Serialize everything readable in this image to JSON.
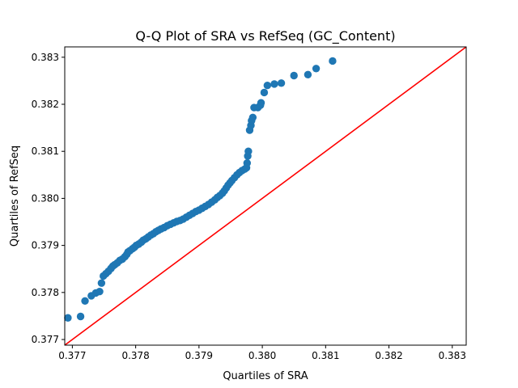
{
  "chart_data": {
    "type": "scatter",
    "title": "Q-Q Plot of SRA vs RefSeq (GC_Content)",
    "xlabel": "Quartiles of SRA",
    "ylabel": "Quartiles of RefSeq",
    "xlim": [
      0.37688,
      0.38322
    ],
    "ylim": [
      0.37688,
      0.38322
    ],
    "xticks": [
      "0.377",
      "0.378",
      "0.379",
      "0.380",
      "0.381",
      "0.382",
      "0.383"
    ],
    "yticks": [
      "0.377",
      "0.378",
      "0.379",
      "0.380",
      "0.381",
      "0.382",
      "0.383"
    ],
    "grid": false,
    "point_color": "#1f77b4",
    "reference_line": {
      "type": "y=x",
      "color": "#ff0000"
    },
    "series": [
      {
        "points": [
          [
            0.37693,
            0.37746
          ],
          [
            0.37713,
            0.37749
          ],
          [
            0.3772,
            0.37782
          ],
          [
            0.3773,
            0.37793
          ],
          [
            0.37737,
            0.37799
          ],
          [
            0.37743,
            0.37802
          ],
          [
            0.37746,
            0.3782
          ],
          [
            0.37749,
            0.37835
          ],
          [
            0.37753,
            0.3784
          ],
          [
            0.37757,
            0.37845
          ],
          [
            0.37761,
            0.37851
          ],
          [
            0.37764,
            0.37856
          ],
          [
            0.37767,
            0.37859
          ],
          [
            0.37771,
            0.37863
          ],
          [
            0.37775,
            0.37868
          ],
          [
            0.37779,
            0.37871
          ],
          [
            0.37783,
            0.37876
          ],
          [
            0.37786,
            0.37881
          ],
          [
            0.37788,
            0.37886
          ],
          [
            0.37791,
            0.37889
          ],
          [
            0.37795,
            0.37893
          ],
          [
            0.37798,
            0.37896
          ],
          [
            0.37801,
            0.379
          ],
          [
            0.37805,
            0.37903
          ],
          [
            0.37809,
            0.37907
          ],
          [
            0.37812,
            0.37911
          ],
          [
            0.37816,
            0.37914
          ],
          [
            0.3782,
            0.37918
          ],
          [
            0.37824,
            0.37922
          ],
          [
            0.37828,
            0.37925
          ],
          [
            0.37832,
            0.37929
          ],
          [
            0.37836,
            0.37932
          ],
          [
            0.3784,
            0.37935
          ],
          [
            0.37845,
            0.37938
          ],
          [
            0.3785,
            0.37942
          ],
          [
            0.37855,
            0.37945
          ],
          [
            0.3786,
            0.37948
          ],
          [
            0.37865,
            0.37951
          ],
          [
            0.3787,
            0.37953
          ],
          [
            0.37875,
            0.37956
          ],
          [
            0.3788,
            0.3796
          ],
          [
            0.37885,
            0.37964
          ],
          [
            0.3789,
            0.37968
          ],
          [
            0.37895,
            0.37972
          ],
          [
            0.379,
            0.37975
          ],
          [
            0.37905,
            0.37979
          ],
          [
            0.3791,
            0.37983
          ],
          [
            0.37915,
            0.37987
          ],
          [
            0.3792,
            0.37992
          ],
          [
            0.37925,
            0.37997
          ],
          [
            0.37929,
            0.38002
          ],
          [
            0.37933,
            0.38006
          ],
          [
            0.37937,
            0.38011
          ],
          [
            0.3794,
            0.38016
          ],
          [
            0.37943,
            0.38022
          ],
          [
            0.37946,
            0.38028
          ],
          [
            0.37949,
            0.38033
          ],
          [
            0.37952,
            0.38038
          ],
          [
            0.37956,
            0.38044
          ],
          [
            0.3796,
            0.3805
          ],
          [
            0.37964,
            0.38055
          ],
          [
            0.37968,
            0.38059
          ],
          [
            0.37972,
            0.38062
          ],
          [
            0.37975,
            0.38065
          ],
          [
            0.37976,
            0.38075
          ],
          [
            0.37977,
            0.3809
          ],
          [
            0.37978,
            0.381
          ],
          [
            0.3798,
            0.38145
          ],
          [
            0.37982,
            0.38155
          ],
          [
            0.37983,
            0.38165
          ],
          [
            0.37985,
            0.38172
          ],
          [
            0.37987,
            0.38193
          ],
          [
            0.37993,
            0.38193
          ],
          [
            0.37997,
            0.38198
          ],
          [
            0.37998,
            0.38203
          ],
          [
            0.38003,
            0.38225
          ],
          [
            0.38008,
            0.3824
          ],
          [
            0.38019,
            0.38243
          ],
          [
            0.3803,
            0.38245
          ],
          [
            0.3805,
            0.38261
          ],
          [
            0.38072,
            0.38263
          ],
          [
            0.38085,
            0.38276
          ],
          [
            0.38111,
            0.38292
          ]
        ]
      }
    ]
  }
}
